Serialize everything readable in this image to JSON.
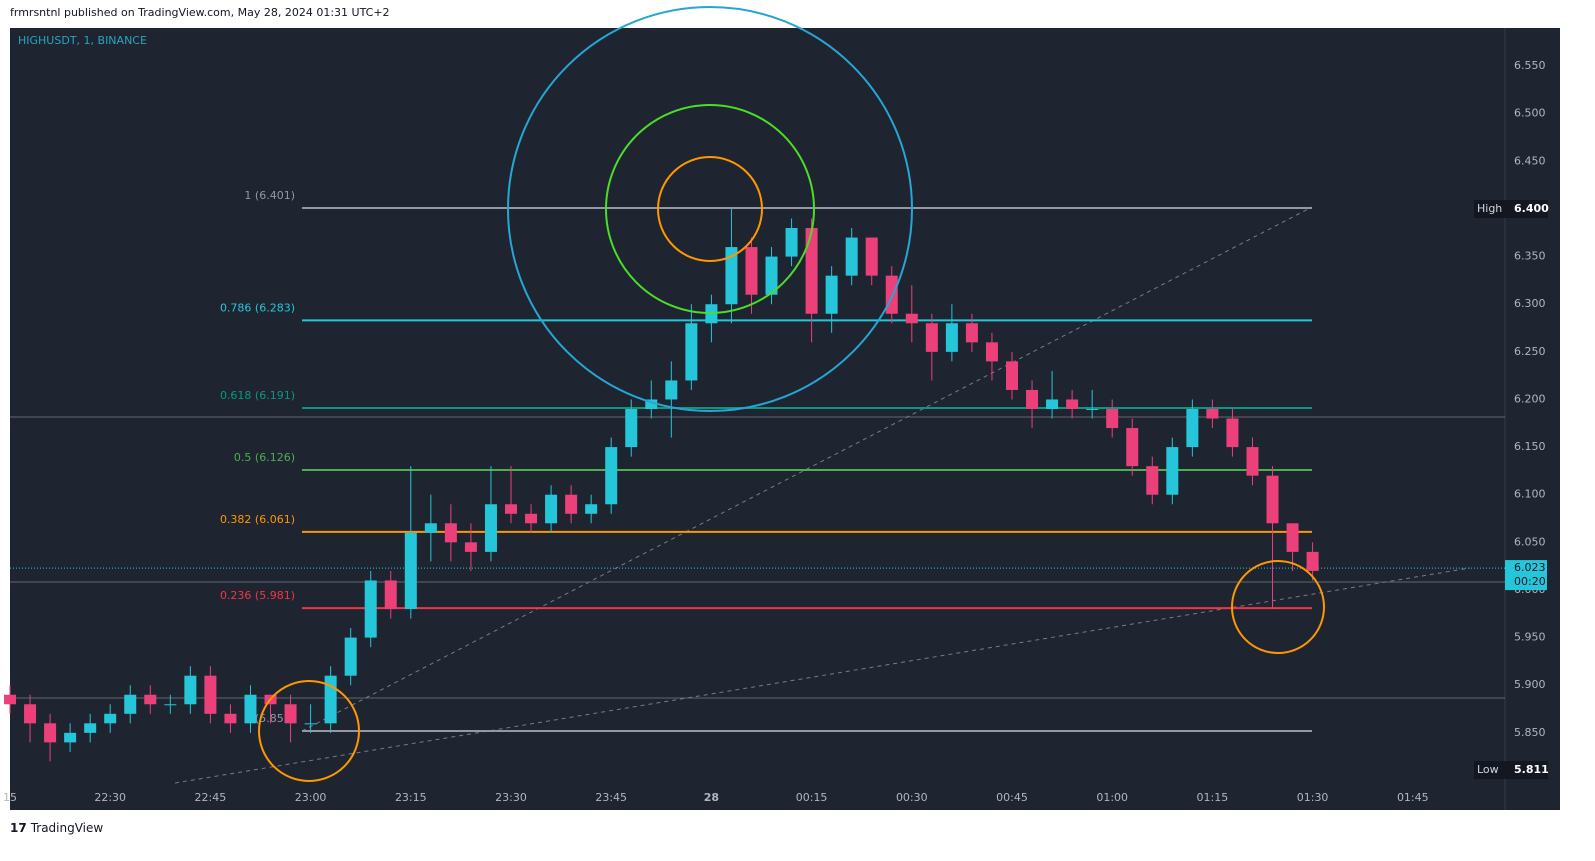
{
  "header": "frmrsntnl published on TradingView.com, May 28, 2024 01:31 UTC+2",
  "footer": "TradingView",
  "chart_data": {
    "type": "candlestick",
    "title": "HIGHUSDT, 1, BINANCE",
    "x": [
      "22:15",
      "22:18",
      "22:21",
      "22:24",
      "22:27",
      "22:30",
      "22:33",
      "22:36",
      "22:39",
      "22:42",
      "22:45",
      "22:48",
      "22:51",
      "22:54",
      "22:57",
      "23:00",
      "23:03",
      "23:06",
      "23:09",
      "23:12",
      "23:15",
      "23:18",
      "23:21",
      "23:24",
      "23:27",
      "23:30",
      "23:33",
      "23:36",
      "23:39",
      "23:42",
      "23:45",
      "23:48",
      "23:51",
      "23:54",
      "23:57",
      "00:00",
      "00:03",
      "00:06",
      "00:09",
      "00:12",
      "00:15",
      "00:18",
      "00:21",
      "00:24",
      "00:27",
      "00:30",
      "00:33",
      "00:36",
      "00:39",
      "00:42",
      "00:45",
      "00:48",
      "00:51",
      "00:54",
      "00:57",
      "01:00",
      "01:03",
      "01:06",
      "01:09",
      "01:12",
      "01:15",
      "01:18",
      "01:21",
      "01:24",
      "01:27",
      "01:30"
    ],
    "open": [
      5.89,
      5.88,
      5.86,
      5.84,
      5.85,
      5.86,
      5.87,
      5.89,
      5.88,
      5.88,
      5.91,
      5.87,
      5.86,
      5.89,
      5.88,
      5.86,
      5.86,
      5.91,
      5.95,
      6.01,
      5.98,
      6.06,
      6.07,
      6.05,
      6.04,
      6.09,
      6.08,
      6.07,
      6.1,
      6.08,
      6.09,
      6.15,
      6.19,
      6.2,
      6.22,
      6.28,
      6.3,
      6.36,
      6.31,
      6.35,
      6.38,
      6.29,
      6.33,
      6.37,
      6.33,
      6.29,
      6.28,
      6.25,
      6.28,
      6.26,
      6.24,
      6.21,
      6.19,
      6.2,
      6.19,
      6.19,
      6.17,
      6.13,
      6.1,
      6.15,
      6.19,
      6.18,
      6.15,
      6.12,
      6.07,
      6.04
    ],
    "high": [
      5.9,
      5.89,
      5.87,
      5.86,
      5.87,
      5.88,
      5.9,
      5.9,
      5.89,
      5.92,
      5.92,
      5.88,
      5.9,
      5.89,
      5.89,
      5.88,
      5.92,
      5.96,
      6.02,
      6.02,
      6.13,
      6.1,
      6.09,
      6.07,
      6.13,
      6.13,
      6.09,
      6.11,
      6.11,
      6.1,
      6.16,
      6.2,
      6.22,
      6.24,
      6.3,
      6.31,
      6.4,
      6.37,
      6.36,
      6.39,
      6.39,
      6.34,
      6.38,
      6.37,
      6.34,
      6.32,
      6.29,
      6.3,
      6.29,
      6.27,
      6.25,
      6.22,
      6.23,
      6.21,
      6.21,
      6.2,
      6.18,
      6.14,
      6.16,
      6.2,
      6.2,
      6.19,
      6.16,
      6.13,
      6.07,
      6.05
    ],
    "low": [
      5.87,
      5.84,
      5.82,
      5.83,
      5.84,
      5.85,
      5.86,
      5.87,
      5.87,
      5.87,
      5.86,
      5.85,
      5.85,
      5.86,
      5.84,
      5.85,
      5.85,
      5.9,
      5.94,
      5.97,
      5.97,
      6.03,
      6.03,
      6.02,
      6.03,
      6.07,
      6.06,
      6.06,
      6.07,
      6.07,
      6.08,
      6.14,
      6.18,
      6.16,
      6.21,
      6.26,
      6.28,
      6.29,
      6.3,
      6.34,
      6.26,
      6.27,
      6.32,
      6.32,
      6.28,
      6.26,
      6.22,
      6.24,
      6.25,
      6.22,
      6.2,
      6.17,
      6.18,
      6.18,
      6.18,
      6.16,
      6.12,
      6.09,
      6.09,
      6.14,
      6.17,
      6.14,
      6.11,
      5.98,
      6.02,
      6.01
    ],
    "close": [
      5.88,
      5.86,
      5.84,
      5.85,
      5.86,
      5.87,
      5.89,
      5.88,
      5.88,
      5.91,
      5.87,
      5.86,
      5.89,
      5.88,
      5.86,
      5.86,
      5.91,
      5.95,
      6.01,
      5.98,
      6.06,
      6.07,
      6.05,
      6.04,
      6.09,
      6.08,
      6.07,
      6.1,
      6.08,
      6.09,
      6.15,
      6.19,
      6.2,
      6.22,
      6.28,
      6.3,
      6.36,
      6.31,
      6.35,
      6.38,
      6.29,
      6.33,
      6.37,
      6.33,
      6.29,
      6.28,
      6.25,
      6.28,
      6.26,
      6.24,
      6.21,
      6.19,
      6.2,
      6.19,
      6.19,
      6.17,
      6.13,
      6.1,
      6.15,
      6.19,
      6.18,
      6.15,
      6.12,
      6.07,
      6.04,
      6.02
    ],
    "up_color": "#26c6da",
    "down_color": "#ec407a",
    "ylim": [
      5.769,
      6.59
    ],
    "yticks": [
      {
        "value": 5.85,
        "label": "5.850"
      },
      {
        "value": 5.9,
        "label": "5.900"
      },
      {
        "value": 5.95,
        "label": "5.950"
      },
      {
        "value": 6.0,
        "label": "6.000"
      },
      {
        "value": 6.05,
        "label": "6.050"
      },
      {
        "value": 6.1,
        "label": "6.100"
      },
      {
        "value": 6.15,
        "label": "6.150"
      },
      {
        "value": 6.2,
        "label": "6.200"
      },
      {
        "value": 6.25,
        "label": "6.250"
      },
      {
        "value": 6.3,
        "label": "6.300"
      },
      {
        "value": 6.35,
        "label": "6.350"
      },
      {
        "value": 6.45,
        "label": "6.450"
      },
      {
        "value": 6.5,
        "label": "6.500"
      },
      {
        "value": 6.55,
        "label": "6.550"
      }
    ],
    "xticks": [
      "15",
      "22:30",
      "22:45",
      "23:00",
      "23:15",
      "23:30",
      "23:45",
      "28",
      "00:15",
      "00:30",
      "00:45",
      "01:00",
      "01:15",
      "01:30",
      "01:45"
    ],
    "fib_levels": [
      {
        "value": 6.401,
        "label": "1 (6.401)",
        "color": "#9598a1"
      },
      {
        "value": 6.283,
        "label": "0.786 (6.283)",
        "color": "#26c6da"
      },
      {
        "value": 6.191,
        "label": "0.618 (6.191)",
        "color": "#089981"
      },
      {
        "value": 6.126,
        "label": "0.5 (6.126)",
        "color": "#4caf50"
      },
      {
        "value": 6.061,
        "label": "0.382 (6.061)",
        "color": "#ff9800"
      },
      {
        "value": 5.981,
        "label": "0.236 (5.981)",
        "color": "#f23645"
      },
      {
        "value": 5.852,
        "label": "0 (5.852)",
        "color": "#9598a1"
      }
    ],
    "price_markers": [
      {
        "name": "High",
        "value": 6.4,
        "label": "6.400"
      },
      {
        "name": "Low",
        "value": 5.811,
        "label": "5.811"
      }
    ],
    "last_price": {
      "value": 6.023,
      "label": "6.023",
      "countdown": "00:20"
    }
  }
}
